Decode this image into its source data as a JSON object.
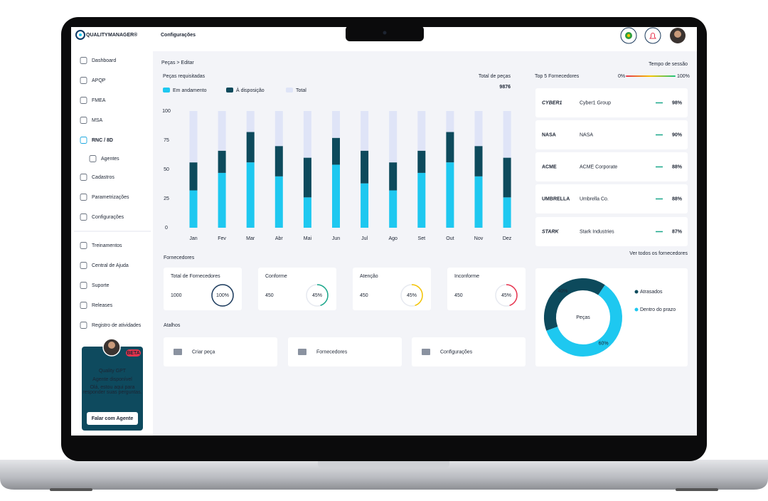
{
  "brand": {
    "name": "QUALITY",
    "name_accent": "MANAGER®"
  },
  "header": {
    "title": "Configurações"
  },
  "sidebar": {
    "items": [
      "Dashboard",
      "APQP",
      "FMEA",
      "MSA",
      "RNC / 8D",
      "Agentes",
      "Cadastros",
      "Parametrizações",
      "Configurações",
      "Treinamentos",
      "Central de Ajuda",
      "Suporte",
      "Releases",
      "Registro de atividades"
    ]
  },
  "agent_card": {
    "badge": "BETA",
    "title": "Quality GPT",
    "status": "Agente disponível",
    "message": [
      "Olá, estou aqui para",
      "responder suas perguntas."
    ],
    "button": "Falar com Agente"
  },
  "breadcrumb": "Peças > Editar",
  "session": {
    "label": "Tempo de sessão",
    "min": "0%",
    "max": "100%"
  },
  "chart_data": {
    "type": "bar",
    "stacked": true,
    "title": "Peças requisitadas",
    "categories": [
      "Jan",
      "Fev",
      "Mar",
      "Abr",
      "Mai",
      "Jun",
      "Jul",
      "Ago",
      "Set",
      "Out",
      "Nov",
      "Dez"
    ],
    "series": [
      {
        "name": "Em andamento",
        "color": "#1ec8f0",
        "values": [
          32,
          47,
          56,
          44,
          26,
          54,
          38,
          32,
          47,
          56,
          44,
          26
        ]
      },
      {
        "name": "À disposição",
        "color": "#0d4a5c",
        "values": [
          24,
          19,
          26,
          26,
          34,
          23,
          28,
          24,
          19,
          26,
          26,
          34
        ]
      },
      {
        "name": "Total",
        "color": "#dfe4f7",
        "values": [
          44,
          34,
          18,
          30,
          40,
          23,
          34,
          44,
          34,
          18,
          30,
          40
        ]
      }
    ],
    "ylim": [
      0,
      100
    ],
    "yticks": [
      0,
      25,
      50,
      75,
      100
    ]
  },
  "total": {
    "label": "Total de peças",
    "value": 9876
  },
  "top_suppliers": {
    "title": "Top 5 Fornecedores",
    "items": [
      {
        "logo": "CYBER1",
        "name": "Cyber1 Group",
        "score": "98%"
      },
      {
        "logo": "NASA",
        "name": "NASA",
        "score": "90%"
      },
      {
        "logo": "ACME",
        "name": "ACME Corporate",
        "score": "88%"
      },
      {
        "logo": "UMBRELLA",
        "name": "Umbrella Co.",
        "score": "88%"
      },
      {
        "logo": "STARK",
        "name": "Stark Industries",
        "score": "87%"
      }
    ],
    "link": "Ver todos os fornecedores"
  },
  "suppliers": {
    "title": "Fornecedores",
    "cards": [
      {
        "label": "Total de Fornecedores",
        "value": 1000,
        "percent": 100,
        "percent_label": "100%",
        "color": "#1b3a5c"
      },
      {
        "label": "Conforme",
        "value": 450,
        "percent": 45,
        "percent_label": "45%",
        "color": "#19a78a"
      },
      {
        "label": "Atenção",
        "value": 450,
        "percent": 45,
        "percent_label": "45%",
        "color": "#f5c400"
      },
      {
        "label": "Inconforme",
        "value": 450,
        "percent": 45,
        "percent_label": "45%",
        "color": "#e8344e"
      }
    ]
  },
  "shortcuts": {
    "title": "Atalhos",
    "items": [
      "Criar peça",
      "Fornecedores",
      "Configurações"
    ]
  },
  "status_donut": {
    "center": "Peças",
    "segments": [
      {
        "name": "Atrasados",
        "value": 40,
        "label": "40%",
        "color": "#0d4a5c"
      },
      {
        "name": "Dentro do prazo",
        "value": 60,
        "label": "60%",
        "color": "#1ec8f0"
      }
    ]
  }
}
